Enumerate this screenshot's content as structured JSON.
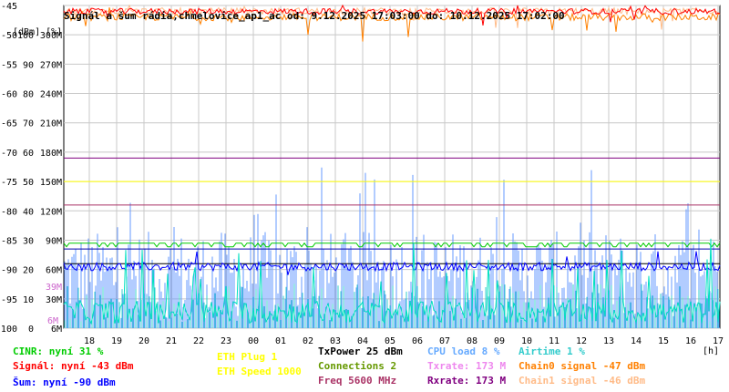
{
  "title": "Signál a šum rádia,chmelovice_ap1_ac od: 9.12.2025 17:03:00 do: 10.12.2025 17:02:00",
  "chart_data": {
    "type": "line",
    "title": "Signál a šum rádia,chmelovice_ap1_ac od: 9.12.2025 17:03:00 do: 10.12.2025 17:02:00",
    "units_left": "[dBm] [%]",
    "units_right": "[h]",
    "x_ticks": [
      "18",
      "19",
      "20",
      "21",
      "22",
      "23",
      "00",
      "01",
      "02",
      "03",
      "04",
      "05",
      "06",
      "07",
      "08",
      "09",
      "10",
      "11",
      "12",
      "13",
      "14",
      "15",
      "16",
      "17"
    ],
    "x_range": [
      "9.12.2025 17:03:00",
      "10.12.2025 17:02:00"
    ],
    "y_axes": {
      "dbm": {
        "ticks": [
          "-45",
          "-50",
          "-55",
          "-60",
          "-65",
          "-70",
          "-75",
          "-80",
          "-85",
          "-90",
          "-95",
          "-100"
        ],
        "range": [
          -100,
          -45
        ]
      },
      "percent": {
        "ticks": [
          "100",
          "90",
          "80",
          "70",
          "60",
          "50",
          "40",
          "30",
          "20",
          "10",
          "0"
        ],
        "range": [
          0,
          100
        ]
      },
      "rate": {
        "ticks": [
          "300M",
          "270M",
          "240M",
          "210M",
          "180M",
          "150M",
          "120M",
          "90M",
          "60M",
          "30M",
          "6M"
        ],
        "range": [
          0,
          300
        ]
      }
    },
    "grid": true,
    "series": [
      {
        "name": "CINR",
        "color": "#00e0c0",
        "approx_mean_percent": 5
      },
      {
        "name": "Signál",
        "color": "#ff0000",
        "approx_mean_dbm": -46
      },
      {
        "name": "Šum",
        "color": "#0000ff",
        "approx_mean_dbm": -89.5
      },
      {
        "name": "CPU load",
        "color": "#6699ff",
        "approx_mean_percent": 15
      },
      {
        "name": "Airtime",
        "color": "#33cccc",
        "approx_mean_percent": 10
      },
      {
        "name": "Chain0 signal",
        "color": "#ff8000",
        "approx_mean_dbm": -47
      },
      {
        "name": "Chain1 signal",
        "color": "#ffbb88",
        "approx_mean_dbm": -46
      },
      {
        "name": "Connections",
        "color": "#00cc00",
        "approx_mean": 2
      }
    ],
    "reference_lines": [
      {
        "label": "TxPower",
        "value_dbm": -71,
        "color": "#800080"
      },
      {
        "label": "Freq",
        "value_dbm": -79,
        "color": "#aa3366"
      },
      {
        "label": "ETH Speed",
        "value_dbm": -75,
        "color": "#ffff00"
      },
      {
        "label": "Rxrate",
        "value_dbm": -86.5,
        "color": "#0000aa"
      },
      {
        "label": "ETH Plug",
        "value_dbm": -89,
        "color": "#000000"
      }
    ],
    "axis_annotations": [
      {
        "text": "39M",
        "color": "#cc66cc"
      },
      {
        "text": "6M",
        "color": "#cc66cc"
      }
    ]
  },
  "legend": [
    {
      "text": "CINR: nyní 31 %",
      "color": "#00cc00"
    },
    {
      "text": "Signál: nyní -43 dBm",
      "color": "#ff0000"
    },
    {
      "text": "Šum: nyní -90 dBm",
      "color": "#0000ff"
    },
    {
      "text": "ETH Plug 1",
      "color": "#ffff00"
    },
    {
      "text": "ETH Speed 1000",
      "color": "#ffff00"
    },
    {
      "text": "TxPower 25 dBm",
      "color": "#000000"
    },
    {
      "text": "Connections 2",
      "color": "#669900"
    },
    {
      "text": "Freq 5600 MHz",
      "color": "#aa3366"
    },
    {
      "text": "CPU load 8 %",
      "color": "#66aaff"
    },
    {
      "text": "Txrate: 173 M",
      "color": "#ee88ee"
    },
    {
      "text": "Rxrate: 173 M",
      "color": "#800080"
    },
    {
      "text": "Airtime 1 %",
      "color": "#33cccc"
    },
    {
      "text": "Chain0 signal -47 dBm",
      "color": "#ff8000"
    },
    {
      "text": "Chain1 signal -46 dBm",
      "color": "#ffbb88"
    }
  ]
}
